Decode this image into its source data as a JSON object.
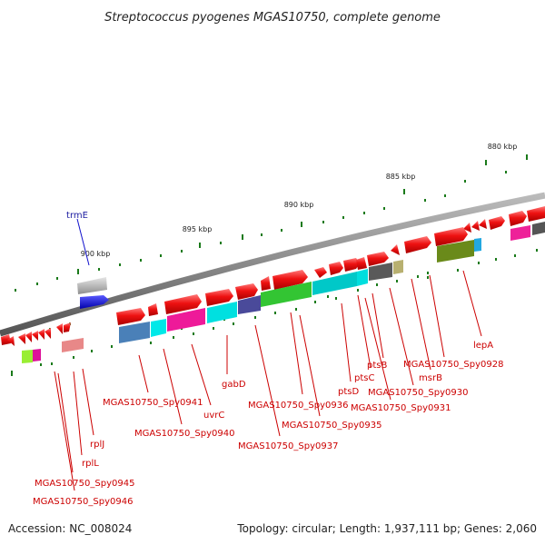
{
  "title": "Streptococcus pyogenes MGAS10750, complete genome",
  "footer": {
    "accession": "Accession: NC_008024",
    "topology": "Topology: circular; Length: 1,937,111 bp; Genes: 2,060"
  },
  "kbp_labels": [
    "880 kbp",
    "885 kbp",
    "890 kbp",
    "895 kbp",
    "900 kbp"
  ],
  "gene_labels": [
    {
      "text": "trmE",
      "color": "#1a1aa0"
    },
    {
      "text": "lepA",
      "color": "#cc0000"
    },
    {
      "text": "MGAS10750_Spy0928",
      "color": "#cc0000"
    },
    {
      "text": "msrB",
      "color": "#cc0000"
    },
    {
      "text": "MGAS10750_Spy0930",
      "color": "#cc0000"
    },
    {
      "text": "ptsB",
      "color": "#cc0000"
    },
    {
      "text": "MGAS10750_Spy0931",
      "color": "#cc0000"
    },
    {
      "text": "ptsC",
      "color": "#cc0000"
    },
    {
      "text": "ptsD",
      "color": "#cc0000"
    },
    {
      "text": "MGAS10750_Spy0936",
      "color": "#cc0000"
    },
    {
      "text": "MGAS10750_Spy0935",
      "color": "#cc0000"
    },
    {
      "text": "MGAS10750_Spy0937",
      "color": "#cc0000"
    },
    {
      "text": "gabD",
      "color": "#cc0000"
    },
    {
      "text": "uvrC",
      "color": "#cc0000"
    },
    {
      "text": "MGAS10750_Spy0941",
      "color": "#cc0000"
    },
    {
      "text": "MGAS10750_Spy0940",
      "color": "#cc0000"
    },
    {
      "text": "rplJ",
      "color": "#cc0000"
    },
    {
      "text": "rplL",
      "color": "#cc0000"
    },
    {
      "text": "MGAS10750_Spy0945",
      "color": "#cc0000"
    },
    {
      "text": "MGAS10750_Spy0946",
      "color": "#cc0000"
    }
  ],
  "colors": {
    "forward_gene": "#ee1111",
    "backbone": "#888888",
    "tick": "#1a7a1a",
    "label_line": "#cc0000",
    "trmE": "#1111cc"
  }
}
